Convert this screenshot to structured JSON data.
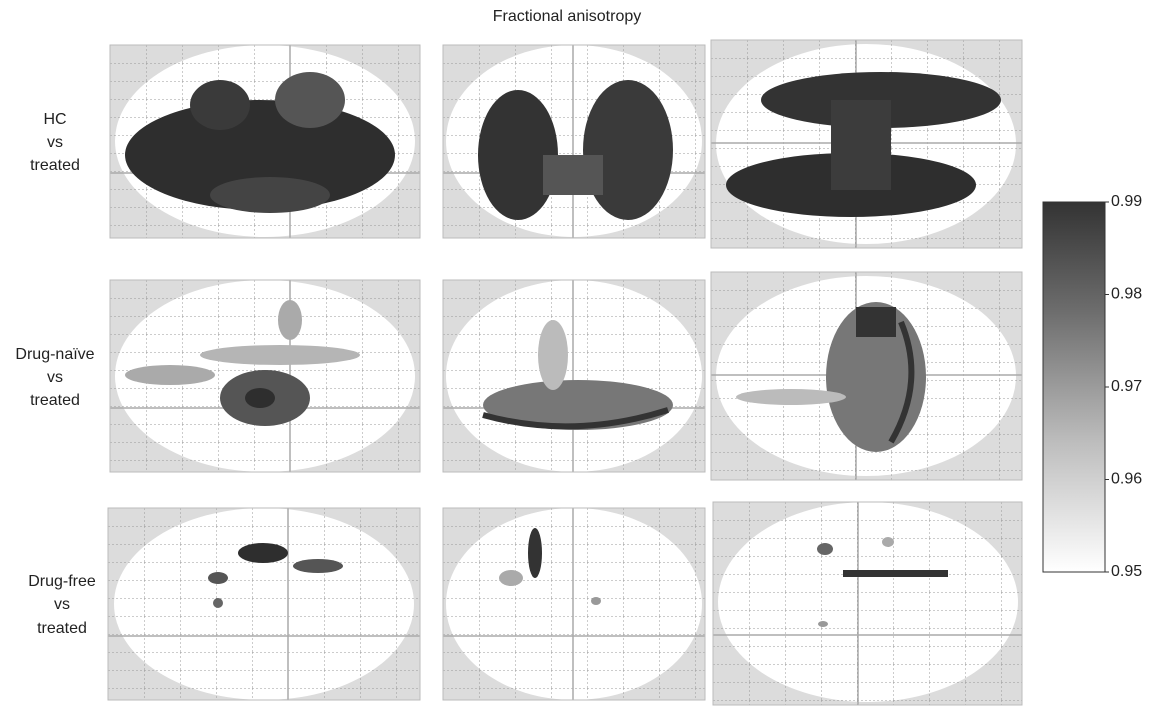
{
  "title": "Fractional anisotropy",
  "rows": [
    {
      "label": [
        "HC",
        "vs",
        "treated"
      ]
    },
    {
      "label": [
        "Drug-naïve",
        "vs",
        "treated"
      ]
    },
    {
      "label": [
        "Drug-free",
        "vs",
        "treated"
      ]
    }
  ],
  "colorbar": {
    "lim": [
      0.95,
      0.99
    ],
    "ticks": [
      0.99,
      0.98,
      0.97,
      0.96,
      0.95
    ]
  }
}
